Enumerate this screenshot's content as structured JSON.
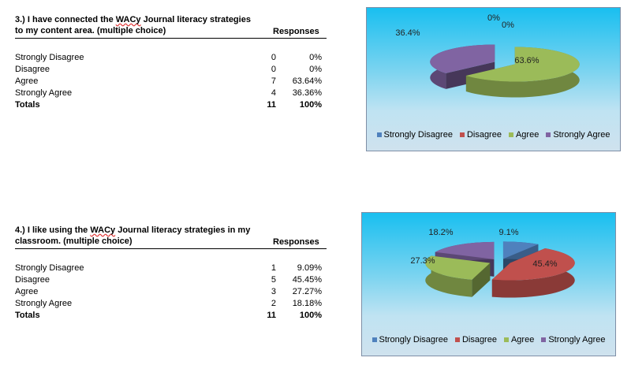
{
  "colors": {
    "strongly_disagree": "#4f81bd",
    "disagree": "#c0504d",
    "agree": "#9bbb59",
    "strongly_agree": "#8064a2"
  },
  "q3": {
    "title_pre": "3.)  I have connected  the ",
    "title_wacy": "WACy",
    "title_post": " Journal literacy strategies to my content area. (multiple choice)",
    "responses_header": "Responses",
    "rows": [
      {
        "label": "Strongly Disagree",
        "count": "0",
        "pct": "0%"
      },
      {
        "label": "Disagree",
        "count": "0",
        "pct": "0%"
      },
      {
        "label": "Agree",
        "count": "7",
        "pct": "63.64%"
      },
      {
        "label": "Strongly Agree",
        "count": "4",
        "pct": "36.36%"
      }
    ],
    "totals": {
      "label": "Totals",
      "count": "11",
      "pct": "100%"
    }
  },
  "q4": {
    "title_pre": "4.)  I like using the ",
    "title_wacy": "WACy",
    "title_post": " Journal literacy strategies in my classroom. (multiple choice)",
    "responses_header": "Responses",
    "rows": [
      {
        "label": "Strongly Disagree",
        "count": "1",
        "pct": "9.09%"
      },
      {
        "label": "Disagree",
        "count": "5",
        "pct": "45.45%"
      },
      {
        "label": "Agree",
        "count": "3",
        "pct": "27.27%"
      },
      {
        "label": "Strongly Agree",
        "count": "2",
        "pct": "18.18%"
      }
    ],
    "totals": {
      "label": "Totals",
      "count": "11",
      "pct": "100%"
    }
  },
  "chart_data": [
    {
      "type": "pie",
      "categories": [
        "Strongly Disagree",
        "Disagree",
        "Agree",
        "Strongly Agree"
      ],
      "values": [
        0,
        0,
        63.6,
        36.4
      ],
      "data_labels": [
        "0%",
        "0%",
        "63.6%",
        "36.4%"
      ],
      "legend": "bottom"
    },
    {
      "type": "pie",
      "categories": [
        "Strongly Disagree",
        "Disagree",
        "Agree",
        "Strongly Agree"
      ],
      "values": [
        9.1,
        45.4,
        27.3,
        18.2
      ],
      "data_labels": [
        "9.1%",
        "45.4%",
        "27.3%",
        "18.2%"
      ],
      "legend": "bottom"
    }
  ]
}
